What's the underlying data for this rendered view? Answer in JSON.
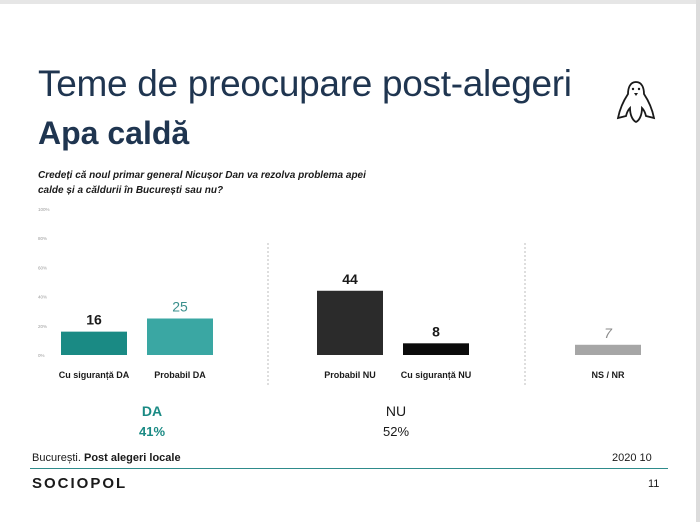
{
  "header": {
    "title": "Teme de preocupare post-alegeri",
    "subtitle": "Apa caldă"
  },
  "question": "Credeți că noul primar general Nicușor Dan va rezolva problema apei calde și a căldurii în București sau nu?",
  "chart_data": {
    "type": "bar",
    "ylim": [
      0,
      100
    ],
    "y_ticks": [
      "100%",
      "80%",
      "60%",
      "40%",
      "20%",
      "0%"
    ],
    "y_tick_values": [
      100,
      80,
      60,
      40,
      20,
      0
    ],
    "grid": false,
    "categories": [
      "Cu siguranță DA",
      "Probabil DA",
      "Probabil NU",
      "Cu siguranță NU",
      "NS / NR"
    ],
    "values": [
      16,
      25,
      44,
      8,
      7
    ],
    "bar_colors": [
      "#1a8a84",
      "#3aa7a3",
      "#2b2b2b",
      "#0b0b0b",
      "#a6a6a6"
    ],
    "label_colors": [
      "#1a1a1a",
      "#3a8f8c",
      "#1a1a1a",
      "#1a1a1a",
      "#8a8a8a"
    ],
    "groups": [
      {
        "label": "DA",
        "total": "41%",
        "color": "#1a8a84"
      },
      {
        "label": "NU",
        "total": "52%",
        "color": "#1a1a1a"
      }
    ]
  },
  "footer": {
    "city": "București.",
    "survey": "Post alegeri locale",
    "date": "2020 10",
    "brand": "SOCIOPOL",
    "page": "11"
  },
  "colors": {
    "title": "#1f3550",
    "accent": "#2e8b8b"
  }
}
